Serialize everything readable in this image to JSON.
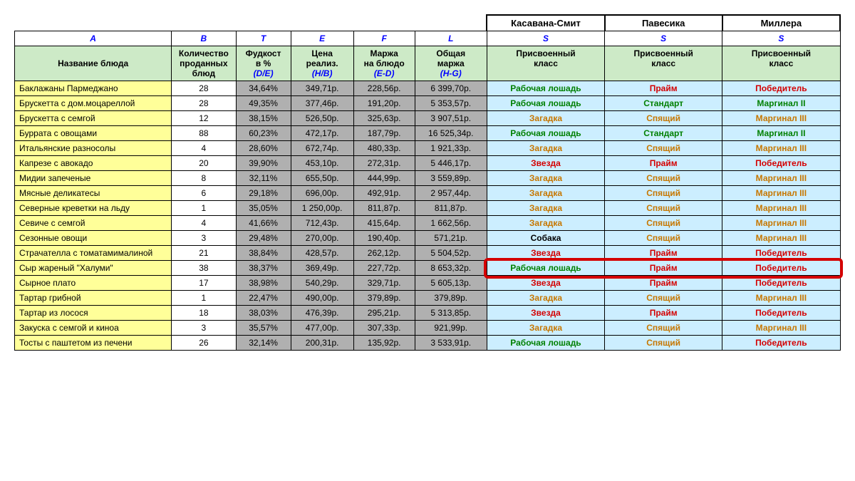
{
  "colors": {
    "header_bg": "#cdeac7",
    "name_bg": "#ffff99",
    "gray_bg": "#b0b0b0",
    "cyan_bg": "#cceeff",
    "accent_blue": "#0000ff",
    "highlight_border": "#d40000",
    "cls_green": "#008000",
    "cls_red": "#d40000",
    "cls_orange": "#c77700",
    "cls_black": "#000000"
  },
  "font": {
    "family": "Arial",
    "size_body": 12,
    "size_method": 13
  },
  "methods": [
    "Касавана-Смит",
    "Павесика",
    "Миллера"
  ],
  "col_letters": [
    "A",
    "B",
    "T",
    "E",
    "F",
    "L",
    "S",
    "S",
    "S"
  ],
  "headers": {
    "name": "Название блюда",
    "qty": {
      "top": "Количество",
      "mid": "проданных",
      "bot": "блюд"
    },
    "foodcost": {
      "top": "Фудкост",
      "mid": "в %",
      "sub": "(D/E)"
    },
    "price": {
      "top": "Цена",
      "mid": "реализ.",
      "sub": "(H/B)"
    },
    "margin": {
      "top": "Маржа",
      "mid": "на блюдо",
      "sub": "(E-D)"
    },
    "total": {
      "top": "Общая",
      "mid": "маржа",
      "sub": "(H-G)"
    },
    "class1": {
      "top": "Присвоенный",
      "mid": "класс"
    },
    "class2": {
      "top": "Присвоенный",
      "mid": "класс"
    },
    "class3": {
      "top": "Присвоенный",
      "mid": "класс"
    }
  },
  "highlight_row_index": 12,
  "rows": [
    {
      "name": "Баклажаны Пармеджано",
      "qty": "28",
      "foodcost": "34,64%",
      "price": "349,71р.",
      "margin": "228,56р.",
      "total": "6 399,70р.",
      "c1": {
        "t": "Рабочая лошадь",
        "k": "green"
      },
      "c2": {
        "t": "Прайм",
        "k": "red"
      },
      "c3": {
        "t": "Победитель",
        "k": "red"
      }
    },
    {
      "name": "Брускетта с дом.моцареллой",
      "qty": "28",
      "foodcost": "49,35%",
      "price": "377,46р.",
      "margin": "191,20р.",
      "total": "5 353,57р.",
      "c1": {
        "t": "Рабочая лошадь",
        "k": "green"
      },
      "c2": {
        "t": "Стандарт",
        "k": "green"
      },
      "c3": {
        "t": "Маргинал II",
        "k": "green"
      }
    },
    {
      "name": "Брускетта с семгой",
      "qty": "12",
      "foodcost": "38,15%",
      "price": "526,50р.",
      "margin": "325,63р.",
      "total": "3 907,51р.",
      "c1": {
        "t": "Загадка",
        "k": "orange"
      },
      "c2": {
        "t": "Спящий",
        "k": "orange"
      },
      "c3": {
        "t": "Маргинал III",
        "k": "orange"
      }
    },
    {
      "name": "Буррата с овощами",
      "qty": "88",
      "foodcost": "60,23%",
      "price": "472,17р.",
      "margin": "187,79р.",
      "total": "16 525,34р.",
      "c1": {
        "t": "Рабочая лошадь",
        "k": "green"
      },
      "c2": {
        "t": "Стандарт",
        "k": "green"
      },
      "c3": {
        "t": "Маргинал II",
        "k": "green"
      }
    },
    {
      "name": "Итальянские разносолы",
      "qty": "4",
      "foodcost": "28,60%",
      "price": "672,74р.",
      "margin": "480,33р.",
      "total": "1 921,33р.",
      "c1": {
        "t": "Загадка",
        "k": "orange"
      },
      "c2": {
        "t": "Спящий",
        "k": "orange"
      },
      "c3": {
        "t": "Маргинал III",
        "k": "orange"
      }
    },
    {
      "name": "Капрезе с авокадо",
      "qty": "20",
      "foodcost": "39,90%",
      "price": "453,10р.",
      "margin": "272,31р.",
      "total": "5 446,17р.",
      "c1": {
        "t": "Звезда",
        "k": "red"
      },
      "c2": {
        "t": "Прайм",
        "k": "red"
      },
      "c3": {
        "t": "Победитель",
        "k": "red"
      }
    },
    {
      "name": "Мидии запеченые",
      "qty": "8",
      "foodcost": "32,11%",
      "price": "655,50р.",
      "margin": "444,99р.",
      "total": "3 559,89р.",
      "c1": {
        "t": "Загадка",
        "k": "orange"
      },
      "c2": {
        "t": "Спящий",
        "k": "orange"
      },
      "c3": {
        "t": "Маргинал III",
        "k": "orange"
      }
    },
    {
      "name": "Мясные деликатесы",
      "qty": "6",
      "foodcost": "29,18%",
      "price": "696,00р.",
      "margin": "492,91р.",
      "total": "2 957,44р.",
      "c1": {
        "t": "Загадка",
        "k": "orange"
      },
      "c2": {
        "t": "Спящий",
        "k": "orange"
      },
      "c3": {
        "t": "Маргинал III",
        "k": "orange"
      }
    },
    {
      "name": "Северные креветки на льду",
      "qty": "1",
      "foodcost": "35,05%",
      "price": "1 250,00р.",
      "margin": "811,87р.",
      "total": "811,87р.",
      "c1": {
        "t": "Загадка",
        "k": "orange"
      },
      "c2": {
        "t": "Спящий",
        "k": "orange"
      },
      "c3": {
        "t": "Маргинал III",
        "k": "orange"
      }
    },
    {
      "name": "Севиче с семгой",
      "qty": "4",
      "foodcost": "41,66%",
      "price": "712,43р.",
      "margin": "415,64р.",
      "total": "1 662,56р.",
      "c1": {
        "t": "Загадка",
        "k": "orange"
      },
      "c2": {
        "t": "Спящий",
        "k": "orange"
      },
      "c3": {
        "t": "Маргинал III",
        "k": "orange"
      }
    },
    {
      "name": "Сезонные овощи",
      "qty": "3",
      "foodcost": "29,48%",
      "price": "270,00р.",
      "margin": "190,40р.",
      "total": "571,21р.",
      "c1": {
        "t": "Собака",
        "k": "black"
      },
      "c2": {
        "t": "Спящий",
        "k": "orange"
      },
      "c3": {
        "t": "Маргинал III",
        "k": "orange"
      }
    },
    {
      "name": "Страчателла с томатамималиной",
      "qty": "21",
      "foodcost": "38,84%",
      "price": "428,57р.",
      "margin": "262,12р.",
      "total": "5 504,52р.",
      "c1": {
        "t": "Звезда",
        "k": "red"
      },
      "c2": {
        "t": "Прайм",
        "k": "red"
      },
      "c3": {
        "t": "Победитель",
        "k": "red"
      }
    },
    {
      "name": "Сыр жареный \"Халуми\"",
      "qty": "38",
      "foodcost": "38,37%",
      "price": "369,49р.",
      "margin": "227,72р.",
      "total": "8 653,32р.",
      "c1": {
        "t": "Рабочая лошадь",
        "k": "green"
      },
      "c2": {
        "t": "Прайм",
        "k": "red"
      },
      "c3": {
        "t": "Победитель",
        "k": "red"
      }
    },
    {
      "name": "Сырное плато",
      "qty": "17",
      "foodcost": "38,98%",
      "price": "540,29р.",
      "margin": "329,71р.",
      "total": "5 605,13р.",
      "c1": {
        "t": "Звезда",
        "k": "red"
      },
      "c2": {
        "t": "Прайм",
        "k": "red"
      },
      "c3": {
        "t": "Победитель",
        "k": "red"
      }
    },
    {
      "name": "Тартар грибной",
      "qty": "1",
      "foodcost": "22,47%",
      "price": "490,00р.",
      "margin": "379,89р.",
      "total": "379,89р.",
      "c1": {
        "t": "Загадка",
        "k": "orange"
      },
      "c2": {
        "t": "Спящий",
        "k": "orange"
      },
      "c3": {
        "t": "Маргинал III",
        "k": "orange"
      }
    },
    {
      "name": "Тартар из лосося",
      "qty": "18",
      "foodcost": "38,03%",
      "price": "476,39р.",
      "margin": "295,21р.",
      "total": "5 313,85р.",
      "c1": {
        "t": "Звезда",
        "k": "red"
      },
      "c2": {
        "t": "Прайм",
        "k": "red"
      },
      "c3": {
        "t": "Победитель",
        "k": "red"
      }
    },
    {
      "name": "Закуска с семгой и киноа",
      "qty": "3",
      "foodcost": "35,57%",
      "price": "477,00р.",
      "margin": "307,33р.",
      "total": "921,99р.",
      "c1": {
        "t": "Загадка",
        "k": "orange"
      },
      "c2": {
        "t": "Спящий",
        "k": "orange"
      },
      "c3": {
        "t": "Маргинал III",
        "k": "orange"
      }
    },
    {
      "name": "Тосты с паштетом из печени",
      "qty": "26",
      "foodcost": "32,14%",
      "price": "200,31р.",
      "margin": "135,92р.",
      "total": "3 533,91р.",
      "c1": {
        "t": "Рабочая лошадь",
        "k": "green"
      },
      "c2": {
        "t": "Спящий",
        "k": "orange"
      },
      "c3": {
        "t": "Победитель",
        "k": "red"
      }
    }
  ]
}
